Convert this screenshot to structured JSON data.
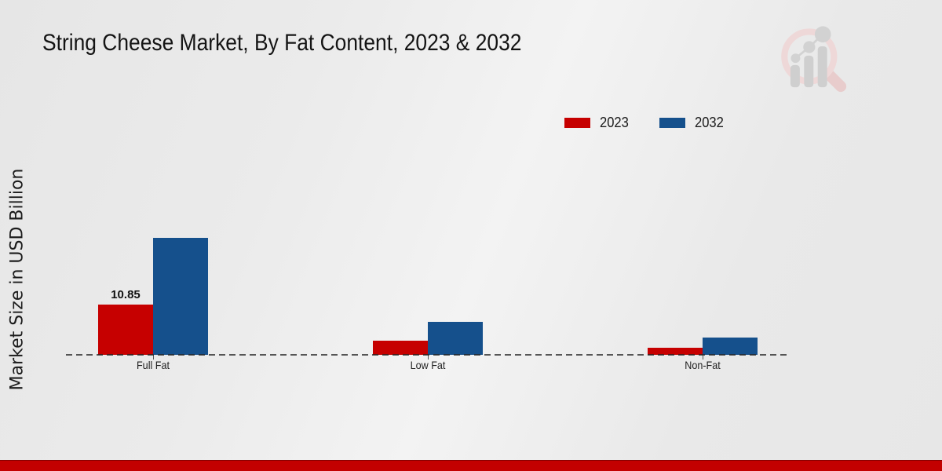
{
  "page": {
    "title": "String Cheese Market, By Fat Content, 2023 & 2032"
  },
  "legend": [
    {
      "label": "2023",
      "color": "#c60000"
    },
    {
      "label": "2032",
      "color": "#15508c"
    }
  ],
  "chart_data": {
    "type": "bar",
    "title": "String Cheese Market, By Fat Content, 2023 & 2032",
    "xlabel": "",
    "ylabel": "Market Size in USD Billion",
    "categories": [
      "Full Fat",
      "Low Fat",
      "Non-Fat"
    ],
    "series": [
      {
        "name": "2023",
        "color": "#c60000",
        "values": [
          10.85,
          3.0,
          1.6
        ]
      },
      {
        "name": "2032",
        "color": "#15508c",
        "values": [
          25.4,
          7.1,
          3.7
        ]
      }
    ],
    "data_labels": [
      {
        "series": "2023",
        "category": "Full Fat",
        "text": "10.85"
      }
    ],
    "ylim": [
      0,
      27
    ],
    "grid": false,
    "legend_position": "top-right",
    "baseline_style": "dashed"
  },
  "branding": {
    "logo_name": "magnifier-bar-chart-watermark"
  },
  "footer": {
    "bar_color": "#c30000"
  }
}
